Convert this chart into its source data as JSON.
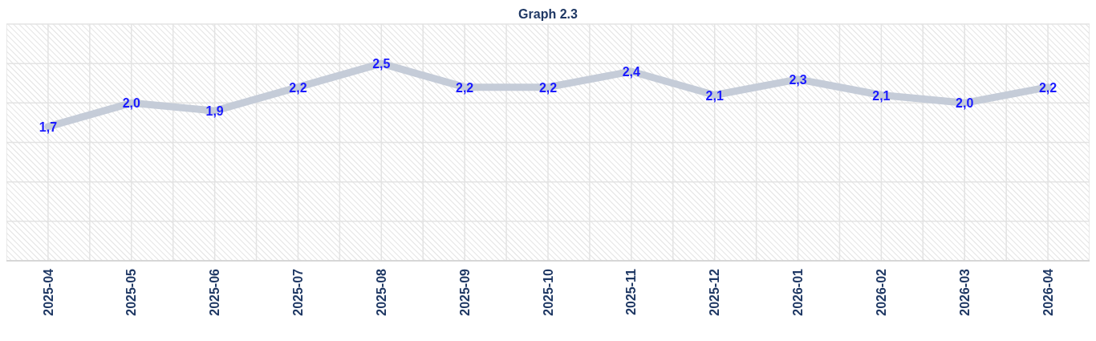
{
  "chart_data": {
    "type": "line",
    "title": "Graph 2.3",
    "categories": [
      "2025-04",
      "2025-05",
      "2025-06",
      "2025-07",
      "2025-08",
      "2025-09",
      "2025-10",
      "2025-11",
      "2025-12",
      "2026-01",
      "2026-02",
      "2026-03",
      "2026-04"
    ],
    "series": [
      {
        "color": "#c5ccd8",
        "values": [
          1.7,
          2.0,
          1.9,
          2.2,
          2.5,
          2.2,
          2.2,
          2.4,
          2.1,
          2.3,
          2.1,
          2.0,
          2.2
        ],
        "value_labels": [
          "1,7",
          "2,0",
          "1,9",
          "2,2",
          "2,5",
          "2,2",
          "2,2",
          "2,4",
          "2,1",
          "2,3",
          "2,1",
          "2,0",
          "2,2"
        ]
      }
    ],
    "ylim": [
      0,
      3
    ],
    "yticks": [
      {
        "value": 0,
        "label": null
      },
      {
        "value": 0.5,
        "label": null
      },
      {
        "value": 1,
        "label": null
      },
      {
        "value": 1.5,
        "label": null
      },
      {
        "value": 2,
        "label": null
      },
      {
        "value": 2.5,
        "label": null
      },
      {
        "value": 3,
        "label": null
      }
    ],
    "tick_labels": "x",
    "grid": true,
    "marker": "none",
    "line_style": "solid"
  }
}
